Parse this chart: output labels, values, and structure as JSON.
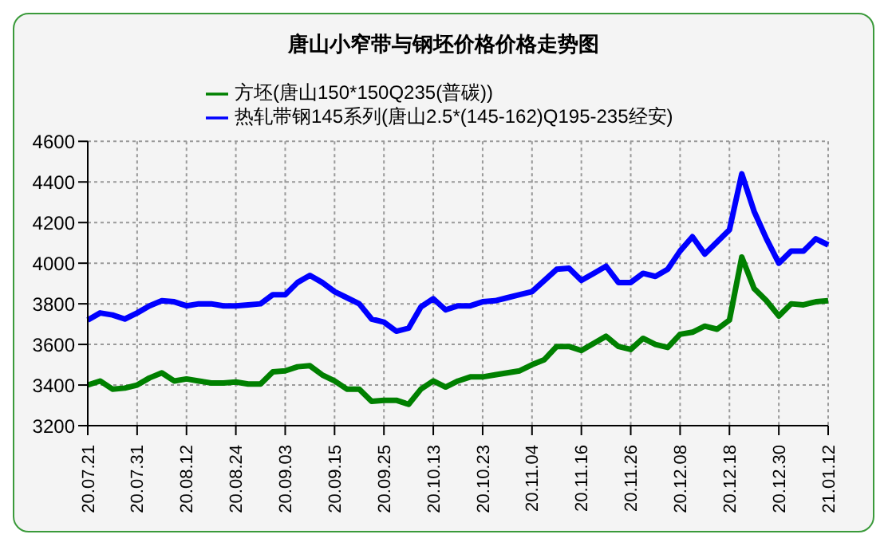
{
  "chart_data": {
    "type": "line",
    "title": "唐山小窄带与钢坯价格价格走势图",
    "categories": [
      "20.07.21",
      null,
      null,
      null,
      "20.07.31",
      null,
      null,
      null,
      "20.08.12",
      null,
      null,
      null,
      "20.08.24",
      null,
      null,
      null,
      "20.09.03",
      null,
      null,
      null,
      "20.09.15",
      null,
      null,
      null,
      "20.09.25",
      null,
      null,
      null,
      "20.10.13",
      null,
      null,
      null,
      "20.10.23",
      null,
      null,
      null,
      "20.11.04",
      null,
      null,
      null,
      "20.11.16",
      null,
      null,
      null,
      "20.11.26",
      null,
      null,
      null,
      "20.12.08",
      null,
      null,
      null,
      "20.12.18",
      null,
      null,
      null,
      "20.12.30",
      null,
      null,
      null,
      "21.01.12"
    ],
    "series": [
      {
        "name": "方坯(唐山150*150Q235(普碳))",
        "color": "#008000",
        "values": [
          3400,
          3420,
          3380,
          3385,
          3400,
          3435,
          3460,
          3420,
          3430,
          3420,
          3410,
          3410,
          3415,
          3405,
          3405,
          3465,
          3470,
          3490,
          3495,
          3450,
          3420,
          3380,
          3380,
          3320,
          3325,
          3325,
          3305,
          3380,
          3420,
          3390,
          3420,
          3440,
          3440,
          3450,
          3460,
          3470,
          3500,
          3525,
          3590,
          3590,
          3570,
          3605,
          3640,
          3590,
          3575,
          3630,
          3600,
          3585,
          3650,
          3660,
          3690,
          3675,
          3720,
          4030,
          3875,
          3815,
          3740,
          3800,
          3795,
          3810,
          3815
        ]
      },
      {
        "name": "热轧带钢145系列(唐山2.5*(145-162)Q195-235经安)",
        "color": "#0000ff",
        "values": [
          3720,
          3755,
          3745,
          3725,
          3755,
          3790,
          3815,
          3810,
          3790,
          3800,
          3800,
          3790,
          3790,
          3795,
          3800,
          3845,
          3845,
          3905,
          3940,
          3905,
          3860,
          3830,
          3800,
          3725,
          3710,
          3665,
          3680,
          3785,
          3825,
          3770,
          3790,
          3790,
          3810,
          3815,
          3830,
          3845,
          3860,
          3915,
          3970,
          3975,
          3915,
          3950,
          3985,
          3905,
          3905,
          3950,
          3935,
          3970,
          4060,
          4130,
          4045,
          4105,
          4165,
          4440,
          4255,
          4120,
          4000,
          4060,
          4060,
          4120,
          4090
        ]
      }
    ],
    "ylim": [
      3200,
      4600
    ],
    "yticks": [
      3200,
      3400,
      3600,
      3800,
      4000,
      4200,
      4400,
      4600
    ],
    "grid": true,
    "legend": "top",
    "marker": "none",
    "line_style": "solid"
  }
}
